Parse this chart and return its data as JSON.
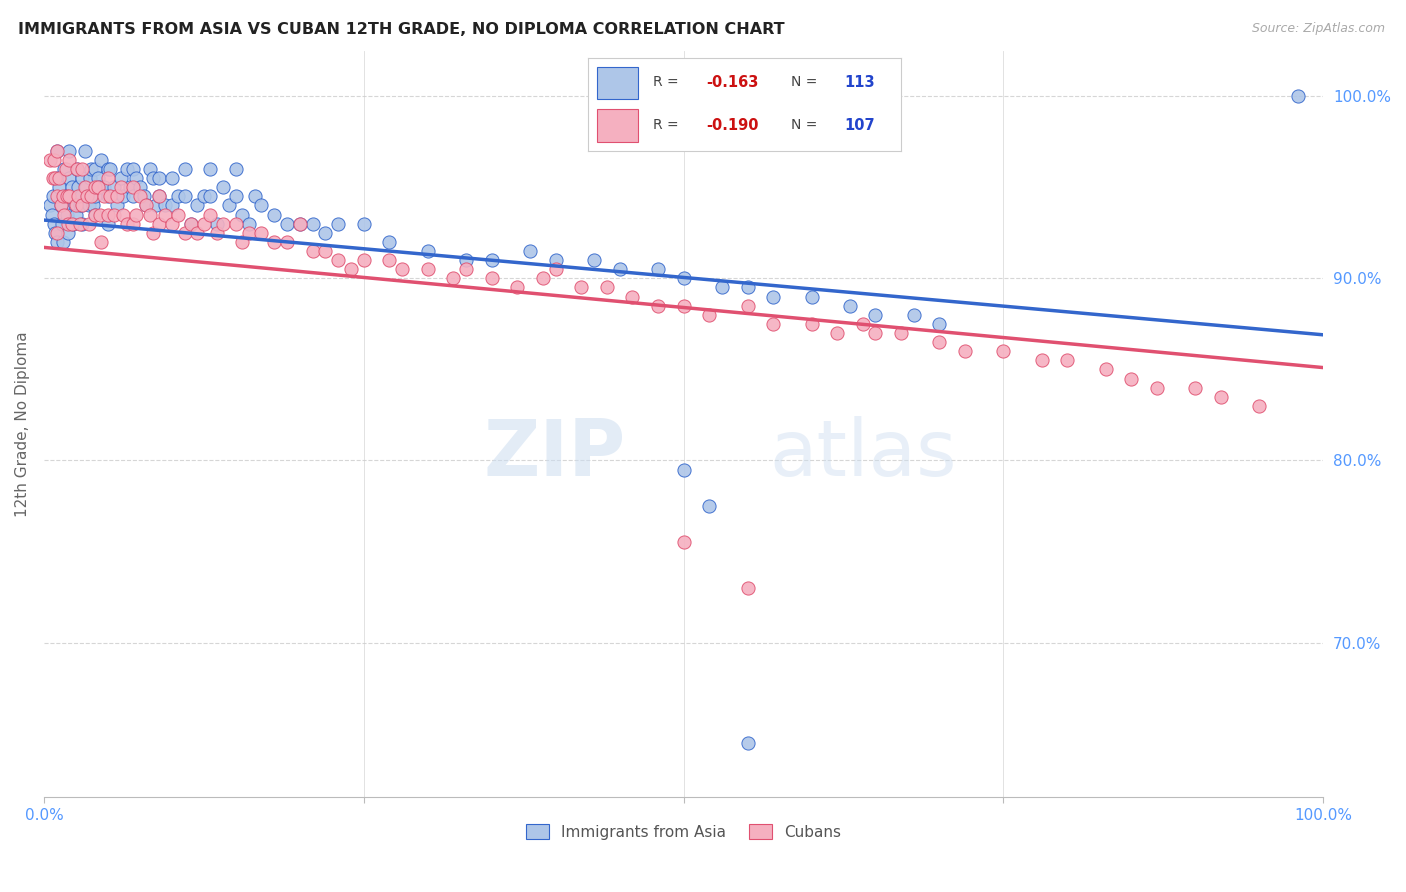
{
  "title": "IMMIGRANTS FROM ASIA VS CUBAN 12TH GRADE, NO DIPLOMA CORRELATION CHART",
  "source": "Source: ZipAtlas.com",
  "ylabel": "12th Grade, No Diploma",
  "legend_label1": "Immigrants from Asia",
  "legend_label2": "Cubans",
  "color_asia": "#aec6e8",
  "color_cuba": "#f5b0c0",
  "color_asia_line": "#3366cc",
  "color_cuba_line": "#e05070",
  "color_axis_labels": "#5599ff",
  "ytick_labels": [
    "100.0%",
    "90.0%",
    "80.0%",
    "70.0%"
  ],
  "ytick_values": [
    1.0,
    0.9,
    0.8,
    0.7
  ],
  "xmin": 0.0,
  "xmax": 1.0,
  "ymin": 0.615,
  "ymax": 1.025,
  "background": "#ffffff",
  "asia_line_x0": 0.0,
  "asia_line_y0": 0.932,
  "asia_line_x1": 1.0,
  "asia_line_y1": 0.869,
  "cuba_line_x0": 0.0,
  "cuba_line_y0": 0.917,
  "cuba_line_x1": 1.0,
  "cuba_line_y1": 0.851,
  "asia_x": [
    0.005,
    0.006,
    0.007,
    0.008,
    0.009,
    0.01,
    0.01,
    0.01,
    0.012,
    0.013,
    0.014,
    0.015,
    0.016,
    0.017,
    0.018,
    0.019,
    0.02,
    0.02,
    0.02,
    0.022,
    0.023,
    0.024,
    0.025,
    0.026,
    0.027,
    0.028,
    0.029,
    0.03,
    0.03,
    0.03,
    0.032,
    0.033,
    0.034,
    0.035,
    0.036,
    0.037,
    0.038,
    0.04,
    0.04,
    0.04,
    0.042,
    0.043,
    0.045,
    0.047,
    0.05,
    0.05,
    0.05,
    0.052,
    0.055,
    0.057,
    0.06,
    0.062,
    0.065,
    0.067,
    0.07,
    0.07,
    0.072,
    0.075,
    0.078,
    0.08,
    0.083,
    0.085,
    0.088,
    0.09,
    0.09,
    0.095,
    0.1,
    0.1,
    0.105,
    0.11,
    0.11,
    0.115,
    0.12,
    0.125,
    0.13,
    0.13,
    0.135,
    0.14,
    0.145,
    0.15,
    0.15,
    0.155,
    0.16,
    0.165,
    0.17,
    0.18,
    0.19,
    0.2,
    0.21,
    0.22,
    0.23,
    0.25,
    0.27,
    0.3,
    0.33,
    0.35,
    0.38,
    0.4,
    0.43,
    0.45,
    0.48,
    0.5,
    0.53,
    0.55,
    0.57,
    0.6,
    0.63,
    0.65,
    0.68,
    0.7,
    0.98,
    0.5,
    0.52,
    0.55
  ],
  "asia_y": [
    0.94,
    0.935,
    0.945,
    0.93,
    0.925,
    0.97,
    0.955,
    0.92,
    0.95,
    0.94,
    0.93,
    0.92,
    0.96,
    0.945,
    0.935,
    0.925,
    0.97,
    0.955,
    0.945,
    0.95,
    0.93,
    0.94,
    0.935,
    0.96,
    0.95,
    0.94,
    0.945,
    0.955,
    0.94,
    0.93,
    0.97,
    0.95,
    0.945,
    0.94,
    0.955,
    0.96,
    0.94,
    0.96,
    0.945,
    0.935,
    0.955,
    0.95,
    0.965,
    0.95,
    0.96,
    0.945,
    0.93,
    0.96,
    0.95,
    0.94,
    0.955,
    0.945,
    0.96,
    0.95,
    0.96,
    0.945,
    0.955,
    0.95,
    0.945,
    0.94,
    0.96,
    0.955,
    0.94,
    0.955,
    0.945,
    0.94,
    0.955,
    0.94,
    0.945,
    0.96,
    0.945,
    0.93,
    0.94,
    0.945,
    0.96,
    0.945,
    0.93,
    0.95,
    0.94,
    0.96,
    0.945,
    0.935,
    0.93,
    0.945,
    0.94,
    0.935,
    0.93,
    0.93,
    0.93,
    0.925,
    0.93,
    0.93,
    0.92,
    0.915,
    0.91,
    0.91,
    0.915,
    0.91,
    0.91,
    0.905,
    0.905,
    0.9,
    0.895,
    0.895,
    0.89,
    0.89,
    0.885,
    0.88,
    0.88,
    0.875,
    1.0,
    0.795,
    0.775,
    0.645
  ],
  "cuba_x": [
    0.005,
    0.007,
    0.008,
    0.009,
    0.01,
    0.01,
    0.01,
    0.012,
    0.013,
    0.015,
    0.016,
    0.017,
    0.018,
    0.019,
    0.02,
    0.02,
    0.022,
    0.025,
    0.026,
    0.027,
    0.028,
    0.03,
    0.03,
    0.032,
    0.034,
    0.035,
    0.037,
    0.04,
    0.04,
    0.042,
    0.044,
    0.045,
    0.047,
    0.05,
    0.05,
    0.052,
    0.055,
    0.057,
    0.06,
    0.062,
    0.065,
    0.07,
    0.07,
    0.072,
    0.075,
    0.08,
    0.083,
    0.085,
    0.09,
    0.09,
    0.095,
    0.1,
    0.105,
    0.11,
    0.115,
    0.12,
    0.125,
    0.13,
    0.135,
    0.14,
    0.15,
    0.155,
    0.16,
    0.17,
    0.18,
    0.19,
    0.2,
    0.21,
    0.22,
    0.23,
    0.24,
    0.25,
    0.27,
    0.28,
    0.3,
    0.32,
    0.33,
    0.35,
    0.37,
    0.39,
    0.4,
    0.42,
    0.44,
    0.46,
    0.48,
    0.5,
    0.52,
    0.55,
    0.57,
    0.6,
    0.62,
    0.64,
    0.65,
    0.67,
    0.7,
    0.72,
    0.75,
    0.78,
    0.8,
    0.83,
    0.85,
    0.87,
    0.9,
    0.92,
    0.95,
    0.5,
    0.55
  ],
  "cuba_y": [
    0.965,
    0.955,
    0.965,
    0.955,
    0.97,
    0.945,
    0.925,
    0.955,
    0.94,
    0.945,
    0.935,
    0.96,
    0.945,
    0.93,
    0.965,
    0.945,
    0.93,
    0.94,
    0.96,
    0.945,
    0.93,
    0.96,
    0.94,
    0.95,
    0.945,
    0.93,
    0.945,
    0.95,
    0.935,
    0.95,
    0.935,
    0.92,
    0.945,
    0.955,
    0.935,
    0.945,
    0.935,
    0.945,
    0.95,
    0.935,
    0.93,
    0.95,
    0.93,
    0.935,
    0.945,
    0.94,
    0.935,
    0.925,
    0.945,
    0.93,
    0.935,
    0.93,
    0.935,
    0.925,
    0.93,
    0.925,
    0.93,
    0.935,
    0.925,
    0.93,
    0.93,
    0.92,
    0.925,
    0.925,
    0.92,
    0.92,
    0.93,
    0.915,
    0.915,
    0.91,
    0.905,
    0.91,
    0.91,
    0.905,
    0.905,
    0.9,
    0.905,
    0.9,
    0.895,
    0.9,
    0.905,
    0.895,
    0.895,
    0.89,
    0.885,
    0.885,
    0.88,
    0.885,
    0.875,
    0.875,
    0.87,
    0.875,
    0.87,
    0.87,
    0.865,
    0.86,
    0.86,
    0.855,
    0.855,
    0.85,
    0.845,
    0.84,
    0.84,
    0.835,
    0.83,
    0.755,
    0.73
  ]
}
